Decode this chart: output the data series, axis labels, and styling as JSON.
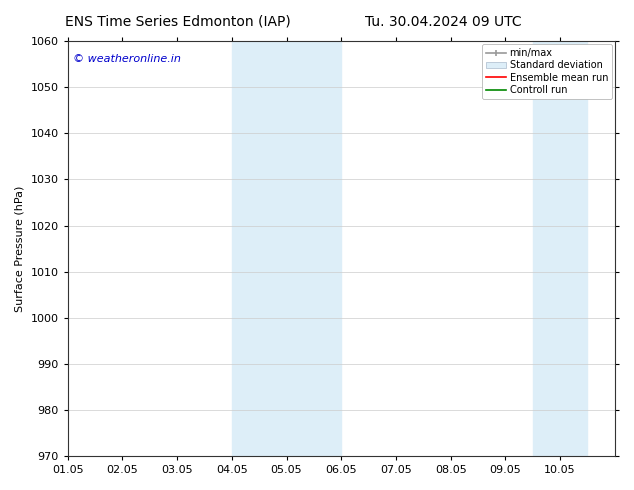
{
  "title_left": "ENS Time Series Edmonton (IAP)",
  "title_right": "Tu. 30.04.2024 09 UTC",
  "ylabel": "Surface Pressure (hPa)",
  "ylim": [
    970,
    1060
  ],
  "yticks": [
    970,
    980,
    990,
    1000,
    1010,
    1020,
    1030,
    1040,
    1050,
    1060
  ],
  "xlim": [
    0,
    10
  ],
  "xtick_positions": [
    0,
    1,
    2,
    3,
    4,
    5,
    6,
    7,
    8,
    9
  ],
  "xtick_labels": [
    "01.05",
    "02.05",
    "03.05",
    "04.05",
    "05.05",
    "06.05",
    "07.05",
    "08.05",
    "09.05",
    "10.05"
  ],
  "shaded_regions": [
    {
      "xmin": 3.0,
      "xmax": 5.0,
      "color": "#ddeef8"
    },
    {
      "xmin": 8.5,
      "xmax": 9.5,
      "color": "#ddeef8"
    }
  ],
  "watermark": "© weatheronline.in",
  "watermark_color": "#0000cc",
  "legend_entries": [
    {
      "label": "min/max",
      "style": "minmax"
    },
    {
      "label": "Standard deviation",
      "style": "stddev"
    },
    {
      "label": "Ensemble mean run",
      "color": "#ff0000",
      "style": "line"
    },
    {
      "label": "Controll run",
      "color": "#008800",
      "style": "line"
    }
  ],
  "bg_color": "#ffffff",
  "grid_color": "#cccccc",
  "spine_color": "#333333",
  "title_fontsize": 10,
  "axis_fontsize": 8,
  "tick_fontsize": 8,
  "watermark_fontsize": 8
}
